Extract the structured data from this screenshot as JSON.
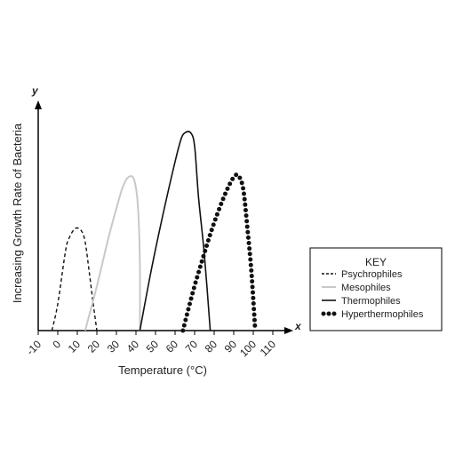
{
  "chart_data": {
    "type": "line",
    "xlabel": "Temperature (°C)",
    "ylabel": "Increasing Growth Rate of Bacteria",
    "x_axis_letter": "x",
    "y_axis_letter": "y",
    "xlim": [
      -10,
      110
    ],
    "ylim": [
      0,
      1
    ],
    "x_ticks": [
      -10,
      0,
      10,
      20,
      30,
      40,
      50,
      60,
      70,
      80,
      90,
      100,
      110
    ],
    "x_tick_labels": [
      "-10",
      "0",
      "10",
      "20",
      "30",
      "40",
      "50",
      "60",
      "70",
      "80",
      "90",
      "100",
      "110"
    ],
    "grid": false,
    "legend_title": "KEY",
    "legend_position": "right",
    "series": [
      {
        "name": "Psychrophiles",
        "style": "dashed",
        "color": "#111111",
        "points": [
          [
            -3,
            0
          ],
          [
            0,
            0.12
          ],
          [
            4,
            0.36
          ],
          [
            6,
            0.42
          ],
          [
            9,
            0.46
          ],
          [
            12,
            0.45
          ],
          [
            14,
            0.4
          ],
          [
            16,
            0.27
          ],
          [
            18,
            0.13
          ],
          [
            20,
            0
          ]
        ]
      },
      {
        "name": "Mesophiles",
        "style": "solid",
        "color": "#c8c8c8",
        "points": [
          [
            14,
            0
          ],
          [
            20,
            0.2
          ],
          [
            26,
            0.42
          ],
          [
            30,
            0.55
          ],
          [
            33,
            0.64
          ],
          [
            36,
            0.69
          ],
          [
            39,
            0.68
          ],
          [
            41,
            0.56
          ],
          [
            42,
            0.3
          ],
          [
            42,
            0
          ]
        ]
      },
      {
        "name": "Thermophiles",
        "style": "solid",
        "color": "#111111",
        "points": [
          [
            42,
            0
          ],
          [
            48,
            0.28
          ],
          [
            54,
            0.53
          ],
          [
            60,
            0.76
          ],
          [
            63,
            0.86
          ],
          [
            65,
            0.89
          ],
          [
            68,
            0.89
          ],
          [
            70,
            0.83
          ],
          [
            72,
            0.6
          ],
          [
            75,
            0.34
          ],
          [
            78,
            0
          ]
        ]
      },
      {
        "name": "Hyperthermophiles",
        "style": "dotted",
        "color": "#111111",
        "points": [
          [
            64,
            0
          ],
          [
            69,
            0.17
          ],
          [
            74,
            0.32
          ],
          [
            79,
            0.46
          ],
          [
            84,
            0.58
          ],
          [
            88,
            0.66
          ],
          [
            91,
            0.7
          ],
          [
            93,
            0.69
          ],
          [
            95,
            0.63
          ],
          [
            97,
            0.46
          ],
          [
            99,
            0.27
          ],
          [
            101,
            0
          ]
        ]
      }
    ]
  }
}
